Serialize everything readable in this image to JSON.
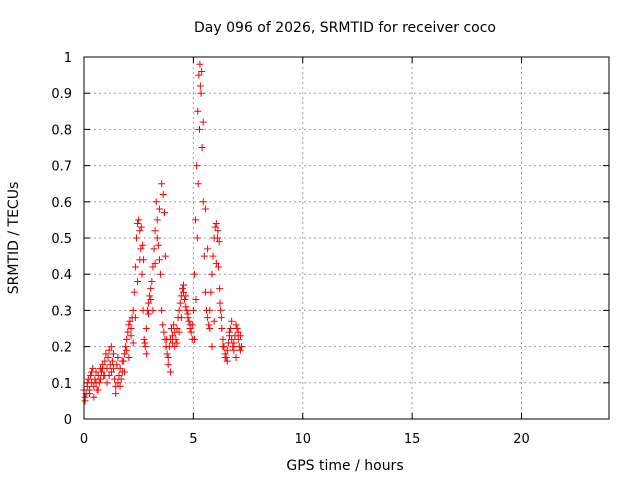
{
  "chart_data": {
    "type": "scatter",
    "title": "Day 096 of 2026, SRMTID for receiver coco",
    "xlabel": "GPS time / hours",
    "ylabel": "SRMTID / TECUs",
    "xlim": [
      0,
      24
    ],
    "ylim": [
      0,
      1
    ],
    "x_ticks": [
      0,
      5,
      10,
      15,
      20
    ],
    "y_ticks": [
      0,
      0.1,
      0.2,
      0.3,
      0.4,
      0.5,
      0.6,
      0.7,
      0.8,
      0.9,
      1
    ],
    "grid": true,
    "marker": "+",
    "series": [
      {
        "name": "SRMTID",
        "color": "#ff0000",
        "x": [
          0.0,
          0.05,
          0.1,
          0.15,
          0.2,
          0.25,
          0.3,
          0.35,
          0.4,
          0.45,
          0.5,
          0.55,
          0.6,
          0.65,
          0.7,
          0.75,
          0.8,
          0.85,
          0.9,
          0.95,
          1.0,
          1.05,
          1.1,
          1.15,
          1.2,
          1.25,
          1.3,
          1.35,
          1.4,
          1.45,
          1.5,
          1.55,
          1.6,
          1.65,
          1.7,
          1.75,
          1.8,
          1.85,
          1.9,
          1.95,
          2.0,
          2.05,
          2.1,
          2.15,
          2.2,
          2.25,
          2.3,
          2.35,
          2.4,
          2.45,
          2.5,
          2.55,
          2.6,
          2.65,
          2.7,
          2.75,
          2.8,
          2.85,
          2.9,
          2.95,
          3.0,
          3.05,
          3.1,
          3.15,
          3.2,
          3.25,
          3.3,
          3.35,
          3.4,
          3.45,
          3.5,
          3.55,
          3.6,
          3.65,
          3.7,
          3.75,
          3.8,
          3.85,
          3.9,
          3.95,
          4.0,
          4.05,
          4.1,
          4.15,
          4.2,
          4.25,
          4.3,
          4.35,
          4.4,
          4.45,
          4.5,
          4.55,
          4.6,
          4.65,
          4.7,
          4.75,
          4.8,
          4.85,
          4.9,
          4.95,
          5.0,
          5.05,
          5.1,
          5.15,
          5.2,
          5.25,
          5.3,
          5.35,
          5.4,
          5.45,
          5.5,
          5.55,
          5.6,
          5.65,
          5.7,
          5.75,
          5.8,
          5.85,
          5.9,
          5.95,
          6.0,
          6.05,
          6.1,
          6.15,
          6.2,
          6.25,
          6.3,
          6.35,
          6.4,
          6.45,
          6.5,
          6.55,
          6.6,
          6.65,
          6.7,
          6.75,
          6.8,
          6.85,
          6.9,
          6.95,
          7.0,
          7.05,
          7.1,
          7.15,
          7.2,
          0.05,
          0.15,
          0.25,
          0.35,
          0.45,
          0.55,
          0.65,
          0.75,
          0.85,
          0.95,
          1.05,
          1.15,
          1.25,
          1.35,
          1.45,
          1.55,
          1.65,
          1.75,
          1.85,
          1.95,
          2.05,
          2.15,
          2.25,
          2.35,
          2.45,
          2.55,
          2.62,
          2.68,
          2.72,
          2.78,
          2.85,
          2.95,
          3.05,
          3.15,
          3.25,
          3.35,
          3.45,
          3.55,
          3.62,
          3.68,
          3.72,
          3.78,
          3.85,
          3.95,
          4.05,
          4.15,
          4.25,
          4.35,
          4.45,
          4.55,
          4.65,
          4.75,
          4.85,
          4.95,
          5.05,
          5.12,
          5.18,
          5.22,
          5.28,
          5.32,
          5.38,
          5.45,
          5.55,
          5.65,
          5.75,
          5.85,
          5.95,
          6.05,
          6.12,
          6.18,
          6.22,
          6.28,
          6.35,
          6.45,
          6.55,
          6.65,
          6.75,
          6.85,
          6.95,
          7.05,
          7.15
        ],
        "y": [
          0.08,
          0.06,
          0.07,
          0.09,
          0.11,
          0.08,
          0.12,
          0.1,
          0.14,
          0.09,
          0.11,
          0.13,
          0.08,
          0.12,
          0.1,
          0.14,
          0.13,
          0.15,
          0.12,
          0.16,
          0.18,
          0.14,
          0.17,
          0.19,
          0.15,
          0.13,
          0.16,
          0.18,
          0.11,
          0.09,
          0.15,
          0.17,
          0.12,
          0.14,
          0.11,
          0.13,
          0.16,
          0.18,
          0.2,
          0.22,
          0.24,
          0.26,
          0.27,
          0.25,
          0.28,
          0.3,
          0.35,
          0.42,
          0.5,
          0.54,
          0.55,
          0.52,
          0.47,
          0.4,
          0.3,
          0.22,
          0.2,
          0.25,
          0.3,
          0.32,
          0.34,
          0.36,
          0.38,
          0.42,
          0.47,
          0.52,
          0.6,
          0.55,
          0.48,
          0.44,
          0.4,
          0.3,
          0.26,
          0.24,
          0.22,
          0.2,
          0.18,
          0.15,
          0.2,
          0.22,
          0.25,
          0.23,
          0.26,
          0.24,
          0.22,
          0.25,
          0.28,
          0.3,
          0.32,
          0.34,
          0.36,
          0.35,
          0.33,
          0.31,
          0.3,
          0.28,
          0.27,
          0.25,
          0.24,
          0.26,
          0.3,
          0.4,
          0.55,
          0.7,
          0.85,
          0.95,
          0.98,
          0.9,
          0.75,
          0.6,
          0.45,
          0.35,
          0.3,
          0.28,
          0.26,
          0.3,
          0.35,
          0.4,
          0.45,
          0.5,
          0.53,
          0.54,
          0.5,
          0.42,
          0.36,
          0.3,
          0.25,
          0.22,
          0.2,
          0.18,
          0.17,
          0.19,
          0.21,
          0.23,
          0.25,
          0.22,
          0.2,
          0.21,
          0.23,
          0.26,
          0.25,
          0.22,
          0.2,
          0.19,
          0.2,
          0.05,
          0.1,
          0.07,
          0.13,
          0.06,
          0.1,
          0.08,
          0.11,
          0.14,
          0.12,
          0.1,
          0.12,
          0.2,
          0.14,
          0.07,
          0.1,
          0.09,
          0.16,
          0.13,
          0.19,
          0.17,
          0.23,
          0.21,
          0.28,
          0.38,
          0.44,
          0.53,
          0.48,
          0.44,
          0.21,
          0.18,
          0.29,
          0.33,
          0.3,
          0.43,
          0.5,
          0.58,
          0.65,
          0.62,
          0.57,
          0.45,
          0.22,
          0.17,
          0.13,
          0.21,
          0.2,
          0.21,
          0.24,
          0.28,
          0.37,
          0.34,
          0.29,
          0.26,
          0.22,
          0.22,
          0.33,
          0.5,
          0.65,
          0.8,
          0.92,
          0.96,
          0.82,
          0.58,
          0.47,
          0.25,
          0.2,
          0.27,
          0.43,
          0.52,
          0.49,
          0.32,
          0.28,
          0.2,
          0.17,
          0.16,
          0.24,
          0.27,
          0.19,
          0.17,
          0.24,
          0.23
        ]
      }
    ]
  }
}
